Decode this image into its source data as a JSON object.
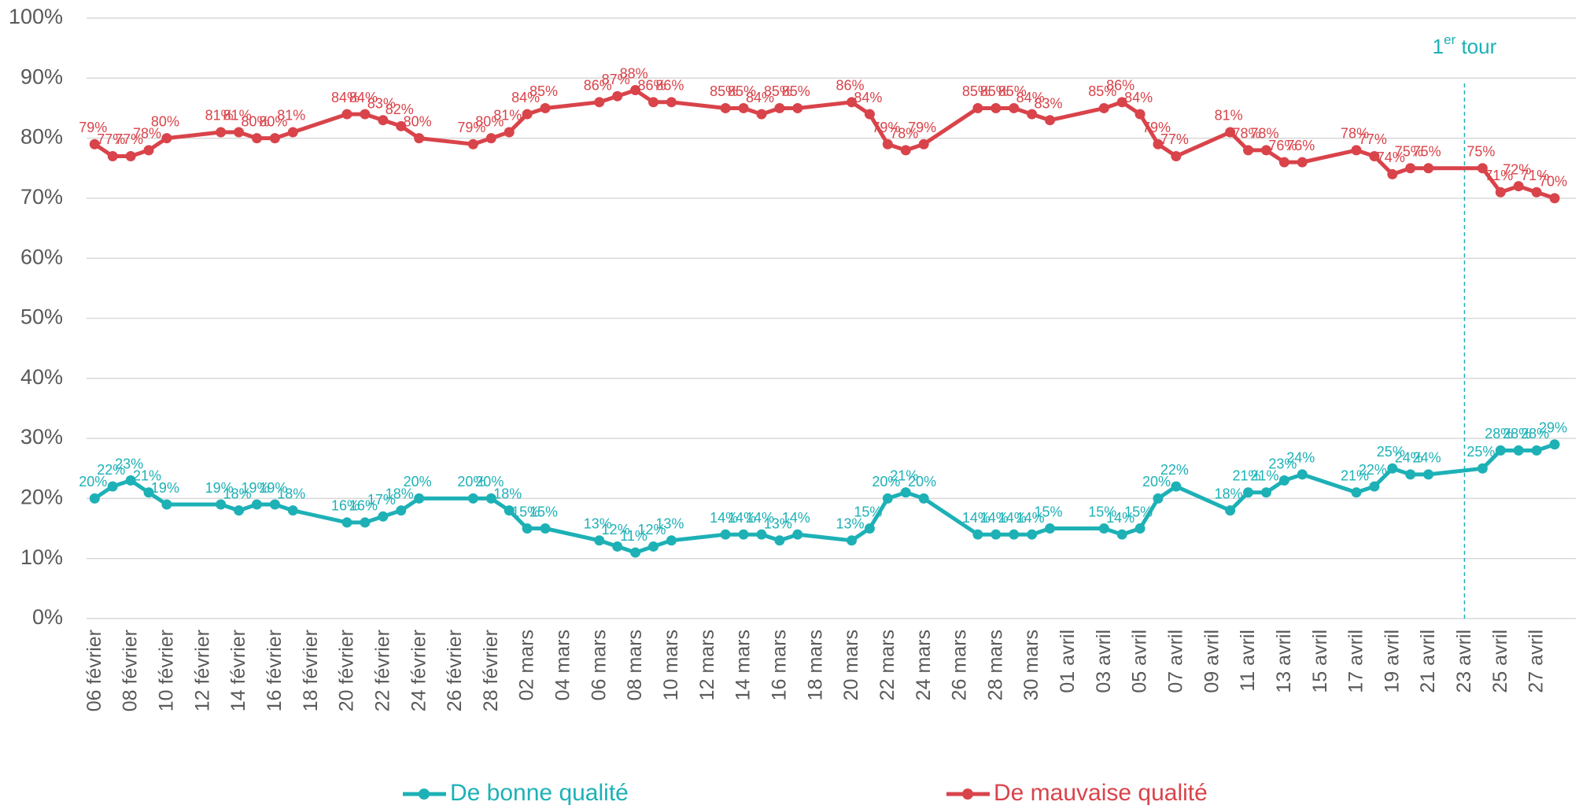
{
  "chart_data": {
    "type": "line",
    "categories": [
      "06 février",
      null,
      "08 février",
      null,
      "10 février",
      null,
      "12 février",
      null,
      "14 février",
      null,
      "16 février",
      null,
      "18 février",
      null,
      "20 février",
      null,
      "22 février",
      null,
      "24 février",
      null,
      "26 février",
      null,
      "28 février",
      null,
      "02 mars",
      null,
      "04 mars",
      null,
      "06 mars",
      null,
      "08 mars",
      null,
      "10 mars",
      null,
      "12 mars",
      null,
      "14 mars",
      null,
      "16 mars",
      null,
      "18 mars",
      null,
      "20 mars",
      null,
      "22 mars",
      null,
      "24 mars",
      null,
      "26 mars",
      null,
      "28 mars",
      null,
      "30 mars",
      null,
      "01 avril",
      null,
      "03 avril",
      null,
      "05 avril",
      null,
      "07 avril",
      null,
      "09 avril",
      null,
      "11 avril",
      null,
      "13 avril",
      null,
      "15 avril",
      null,
      "17 avril",
      null,
      "19 avril",
      null,
      "21 avril",
      null,
      "23 avril",
      null,
      "25 avril",
      null,
      "27 avril",
      null
    ],
    "series": [
      {
        "name": "De bonne qualité",
        "color": "#1db1b6",
        "values": [
          20,
          22,
          23,
          21,
          19,
          null,
          null,
          19,
          18,
          19,
          19,
          18,
          null,
          null,
          16,
          16,
          17,
          18,
          20,
          null,
          null,
          20,
          20,
          18,
          15,
          15,
          null,
          null,
          13,
          12,
          11,
          12,
          13,
          null,
          null,
          14,
          14,
          14,
          13,
          14,
          null,
          null,
          13,
          15,
          20,
          21,
          20,
          null,
          null,
          14,
          14,
          14,
          14,
          15,
          null,
          null,
          15,
          14,
          15,
          20,
          22,
          null,
          null,
          18,
          21,
          21,
          23,
          24,
          null,
          null,
          21,
          22,
          25,
          24,
          24,
          null,
          null,
          25,
          28,
          28,
          28,
          29
        ],
        "value_labels": [
          "20%",
          "22%",
          "23%",
          "21%",
          "19%",
          null,
          null,
          "19%",
          "18%",
          "19%",
          "19%",
          "18%",
          null,
          null,
          "16%",
          "16%",
          "17%",
          "18%",
          "20%",
          null,
          null,
          "20%",
          "20%",
          "18%",
          "15%",
          "15%",
          null,
          null,
          "13%",
          "12%",
          "11%",
          "12%",
          "13%",
          null,
          null,
          "14%",
          "14%",
          "14%",
          "13%",
          "14%",
          null,
          null,
          "13%",
          "15%",
          "20%",
          "21%",
          "20%",
          null,
          null,
          "14%",
          "14%",
          "14%",
          "14%",
          "15%",
          null,
          null,
          "15%",
          "14%",
          "15%",
          "20%",
          "22%",
          null,
          null,
          "18%",
          "21%",
          "21%",
          "23%",
          "24%",
          null,
          null,
          "21%",
          "22%",
          "25%",
          "24%",
          "24%",
          null,
          null,
          "25%",
          "28%",
          "28%",
          "28%",
          "29%"
        ]
      },
      {
        "name": "De mauvaise qualité",
        "color": "#d9434a",
        "values": [
          79,
          77,
          77,
          78,
          80,
          null,
          null,
          81,
          81,
          80,
          80,
          81,
          null,
          null,
          84,
          84,
          83,
          82,
          80,
          null,
          null,
          79,
          80,
          81,
          84,
          85,
          null,
          null,
          86,
          87,
          88,
          86,
          86,
          null,
          null,
          85,
          85,
          84,
          85,
          85,
          null,
          null,
          86,
          84,
          79,
          78,
          79,
          null,
          null,
          85,
          85,
          85,
          84,
          83,
          null,
          null,
          85,
          86,
          84,
          79,
          77,
          null,
          null,
          81,
          78,
          78,
          76,
          76,
          null,
          null,
          78,
          77,
          74,
          75,
          75,
          null,
          null,
          75,
          71,
          72,
          71,
          70
        ],
        "value_labels": [
          "79%",
          "77%",
          "77%",
          "78%",
          "80%",
          null,
          null,
          "81%",
          "81%",
          "80%",
          "80%",
          "81%",
          null,
          null,
          "84%",
          "84%",
          "83%",
          "82%",
          "80%",
          null,
          null,
          "79%",
          "80%",
          "81%",
          "84%",
          "85%",
          null,
          null,
          "86%",
          "87%",
          "88%",
          "86%",
          "86%",
          null,
          null,
          "85%",
          "85%",
          "84%",
          "85%",
          "85%",
          null,
          null,
          "86%",
          "84%",
          "79%",
          "78%",
          "79%",
          null,
          null,
          "85%",
          "85%",
          "85%",
          "84%",
          "83%",
          null,
          null,
          "85%",
          "86%",
          "84%",
          "79%",
          "77%",
          null,
          null,
          "81%",
          "78%",
          "78%",
          "76%",
          "76%",
          null,
          null,
          "78%",
          "77%",
          "74%",
          "75%",
          "75%",
          null,
          null,
          "75%",
          "71%",
          "72%",
          "71%",
          "70%"
        ]
      }
    ],
    "connect_gaps": true,
    "ylim": [
      0,
      100
    ],
    "yticks": [
      {
        "value": 0,
        "label": "0%"
      },
      {
        "value": 10,
        "label": "10%"
      },
      {
        "value": 20,
        "label": "20%"
      },
      {
        "value": 30,
        "label": "30%"
      },
      {
        "value": 40,
        "label": "40%"
      },
      {
        "value": 50,
        "label": "50%"
      },
      {
        "value": 60,
        "label": "60%"
      },
      {
        "value": 70,
        "label": "70%"
      },
      {
        "value": 80,
        "label": "80%"
      },
      {
        "value": 90,
        "label": "90%"
      },
      {
        "value": 100,
        "label": "100%"
      }
    ],
    "grid": true,
    "legend": "bottom",
    "annotation": {
      "text": "1",
      "superscript": "er",
      "suffix": " tour",
      "x": "23 avril",
      "color": "#1db1b6"
    }
  }
}
